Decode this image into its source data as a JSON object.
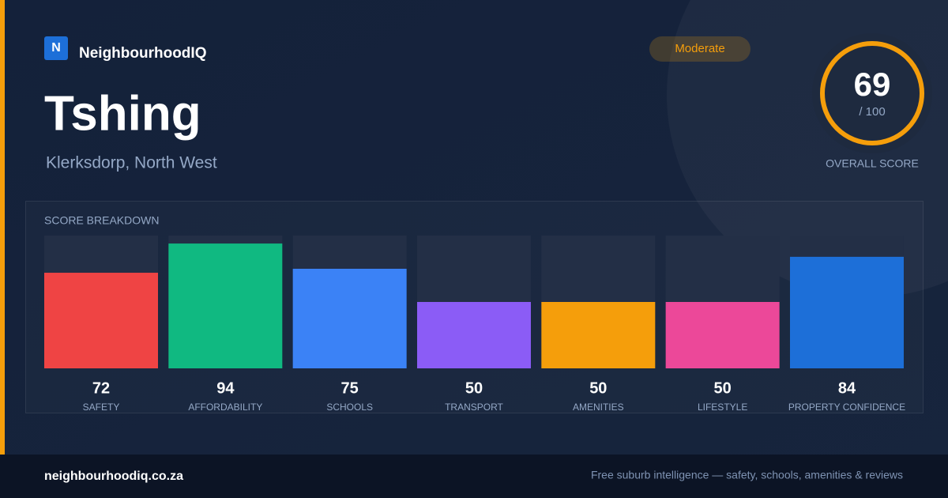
{
  "brand": {
    "logo": "N",
    "name": "NeighbourhoodIQ"
  },
  "badge": "Moderate",
  "title": "Tshing",
  "subtitle": "Klerksdorp, North West",
  "score": {
    "value": 69,
    "max_label": "/ 100",
    "caption": "OVERALL SCORE"
  },
  "chart_data": {
    "type": "bar",
    "title": "SCORE BREAKDOWN",
    "categories": [
      "SAFETY",
      "AFFORDABILITY",
      "SCHOOLS",
      "TRANSPORT",
      "AMENITIES",
      "LIFESTYLE",
      "PROPERTY CONFIDENCE"
    ],
    "values": [
      72,
      94,
      75,
      50,
      50,
      50,
      84
    ],
    "colors": [
      "#ef4444",
      "#10b981",
      "#3b82f6",
      "#8b5cf6",
      "#f59e0b",
      "#ec4899",
      "#1d6fd8"
    ],
    "ylim": [
      0,
      100
    ]
  },
  "footer": {
    "site": "neighbourhoodiq.co.za",
    "tagline": "Free suburb intelligence — safety, schools, amenities & reviews"
  }
}
